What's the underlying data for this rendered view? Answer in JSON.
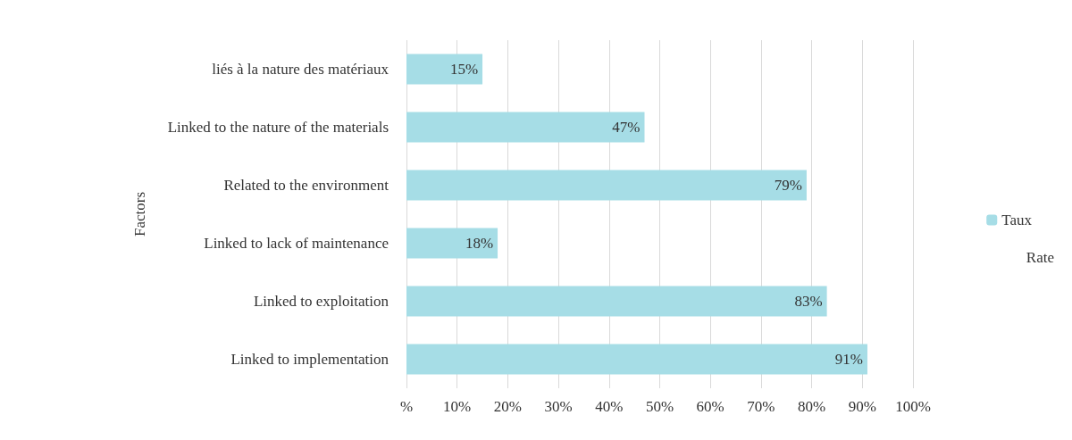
{
  "chart_data": {
    "type": "bar",
    "orientation": "horizontal",
    "ylabel": "Factors",
    "categories": [
      "liés à la nature des matériaux",
      "Linked to the nature of the materials",
      "Related to the environment",
      "Linked to lack of maintenance",
      "Linked to exploitation",
      "Linked to implementation"
    ],
    "series": [
      {
        "name": "Taux",
        "color": "#a6dde6",
        "values": [
          15,
          47,
          79,
          18,
          83,
          91
        ],
        "value_labels": [
          "15%",
          "47%",
          "79%",
          "18%",
          "83%",
          "91%"
        ]
      }
    ],
    "xlim": [
      0,
      100
    ],
    "xticks": [
      {
        "value": 0,
        "label": "%"
      },
      {
        "value": 10,
        "label": "10%"
      },
      {
        "value": 20,
        "label": "20%"
      },
      {
        "value": 30,
        "label": "30%"
      },
      {
        "value": 40,
        "label": "40%"
      },
      {
        "value": 50,
        "label": "50%"
      },
      {
        "value": 60,
        "label": "60%"
      },
      {
        "value": 70,
        "label": "70%"
      },
      {
        "value": 80,
        "label": "80%"
      },
      {
        "value": 90,
        "label": "90%"
      },
      {
        "value": 100,
        "label": "100%"
      }
    ],
    "grid": "x",
    "legend": "right",
    "annotations": [
      "Rate"
    ]
  }
}
